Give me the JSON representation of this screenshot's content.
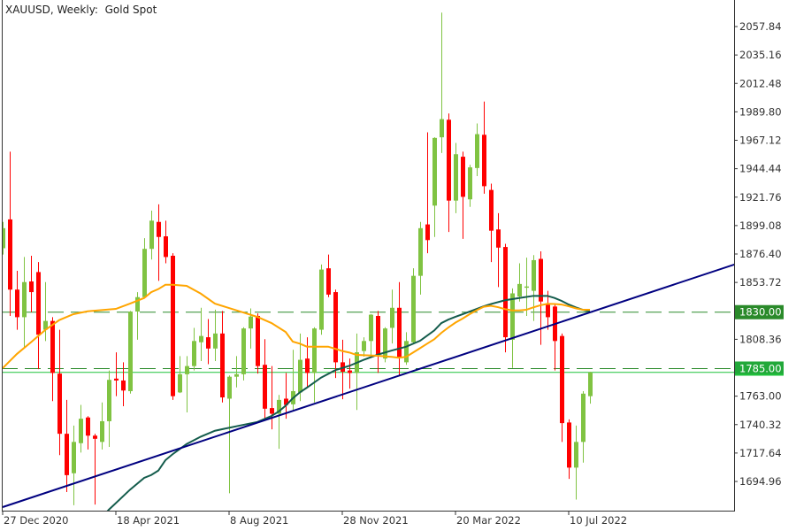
{
  "header": {
    "title": "XAUUSD, Weekly:  Gold Spot"
  },
  "colors": {
    "bull": "#80c342",
    "bear": "#ff0000",
    "ma_fast": "#ffa500",
    "ma_slow": "#145c4c",
    "trendline": "#000080",
    "level": "#2a8a2a",
    "price_line": "#1fc23a",
    "axis": "#333333"
  },
  "chart_data": {
    "type": "candlestick",
    "title": "XAUUSD, Weekly:  Gold Spot",
    "ylim": [
      1680,
      2075
    ],
    "y_ticks": [
      "2057.84",
      "2035.16",
      "2012.48",
      "1989.80",
      "1967.12",
      "1944.44",
      "1921.76",
      "1899.08",
      "1876.40",
      "1853.72",
      "1808.36",
      "1763.00",
      "1740.32",
      "1717.64",
      "1694.96"
    ],
    "x_ticks": [
      {
        "index": 0,
        "label": "27 Dec 2020"
      },
      {
        "index": 16,
        "label": "18 Apr 2021"
      },
      {
        "index": 32,
        "label": "8 Aug 2021"
      },
      {
        "index": 48,
        "label": "28 Nov 2021"
      },
      {
        "index": 64,
        "label": "20 Mar 2022"
      },
      {
        "index": 80,
        "label": "10 Jul 2022"
      }
    ],
    "candles_ohlc": [
      [
        1881,
        1902,
        1876,
        1897
      ],
      [
        1904,
        1958,
        1827,
        1848
      ],
      [
        1848,
        1863,
        1816,
        1826
      ],
      [
        1826,
        1874,
        1801,
        1854
      ],
      [
        1854.5,
        1875,
        1830,
        1846
      ],
      [
        1862,
        1870,
        1784.5,
        1812
      ],
      [
        1816,
        1854,
        1807,
        1823
      ],
      [
        1823,
        1826,
        1759,
        1781.5
      ],
      [
        1781,
        1816,
        1716,
        1733
      ],
      [
        1733,
        1760,
        1686.5,
        1700
      ],
      [
        1701.5,
        1739.5,
        1676,
        1726.5
      ],
      [
        1725.5,
        1756,
        1718,
        1745
      ],
      [
        1746,
        1747,
        1720.5,
        1731.5
      ],
      [
        1731.5,
        1733,
        1676.5,
        1729
      ],
      [
        1726.5,
        1758,
        1720.5,
        1743
      ],
      [
        1743,
        1783.5,
        1722.5,
        1776
      ],
      [
        1777,
        1798,
        1763,
        1775.5
      ],
      [
        1775.5,
        1790,
        1755,
        1767.5
      ],
      [
        1767,
        1831,
        1765,
        1830.5
      ],
      [
        1830.5,
        1846,
        1808,
        1842
      ],
      [
        1842,
        1889,
        1841,
        1880.5
      ],
      [
        1880.5,
        1911,
        1872,
        1903
      ],
      [
        1902,
        1916,
        1855,
        1890
      ],
      [
        1890.5,
        1903,
        1869,
        1874
      ],
      [
        1875,
        1877,
        1760,
        1763
      ],
      [
        1766,
        1795,
        1765.5,
        1780.5
      ],
      [
        1780.5,
        1795,
        1750,
        1787
      ],
      [
        1787,
        1817.5,
        1783.5,
        1807
      ],
      [
        1806,
        1833.5,
        1791,
        1811
      ],
      [
        1810,
        1824.5,
        1788.5,
        1801
      ],
      [
        1801,
        1832,
        1791,
        1813
      ],
      [
        1813,
        1831,
        1758,
        1762
      ],
      [
        1761,
        1779.5,
        1685.5,
        1778.5
      ],
      [
        1778.5,
        1795,
        1770,
        1780.5
      ],
      [
        1780.5,
        1818,
        1775.5,
        1817
      ],
      [
        1817,
        1833,
        1801,
        1826.5
      ],
      [
        1827,
        1829,
        1781,
        1787
      ],
      [
        1788,
        1808.5,
        1744,
        1753
      ],
      [
        1753.5,
        1787,
        1736.5,
        1749
      ],
      [
        1749,
        1764,
        1721,
        1760
      ],
      [
        1761,
        1781.5,
        1745,
        1756
      ],
      [
        1756.5,
        1800,
        1752,
        1767
      ],
      [
        1766,
        1813,
        1759,
        1792
      ],
      [
        1793,
        1810,
        1770,
        1781.5
      ],
      [
        1781.5,
        1818,
        1758,
        1817
      ],
      [
        1816,
        1868,
        1812,
        1864
      ],
      [
        1865,
        1876,
        1842,
        1844
      ],
      [
        1846,
        1848,
        1777.5,
        1790
      ],
      [
        1790,
        1808,
        1760.5,
        1782.5
      ],
      [
        1783.5,
        1793,
        1769,
        1781.5
      ],
      [
        1781.5,
        1813,
        1752,
        1798
      ],
      [
        1799,
        1810,
        1794.5,
        1807
      ],
      [
        1807,
        1828.5,
        1794.5,
        1828
      ],
      [
        1827,
        1831,
        1781.5,
        1796
      ],
      [
        1793,
        1818,
        1790,
        1817
      ],
      [
        1817.5,
        1848,
        1805,
        1833.5
      ],
      [
        1833.5,
        1854,
        1779.5,
        1794
      ],
      [
        1790,
        1814,
        1788,
        1807
      ],
      [
        1806,
        1865,
        1805,
        1859
      ],
      [
        1859,
        1902,
        1844,
        1897
      ],
      [
        1900,
        1973.5,
        1877,
        1887.5
      ],
      [
        1915,
        1969.5,
        1890,
        1969
      ],
      [
        1969.5,
        2069,
        1957,
        1984
      ],
      [
        1983.5,
        1988.5,
        1894,
        1919
      ],
      [
        1919,
        1965,
        1909,
        1956
      ],
      [
        1954,
        1958,
        1888.5,
        1922
      ],
      [
        1920,
        1947.5,
        1914,
        1945.5
      ],
      [
        1945,
        1980.5,
        1938.5,
        1972
      ],
      [
        1971.5,
        1998,
        1924.5,
        1930.5
      ],
      [
        1927.5,
        1932.5,
        1870,
        1895
      ],
      [
        1896,
        1909,
        1850,
        1881.5
      ],
      [
        1882,
        1884.5,
        1798,
        1810
      ],
      [
        1808,
        1849,
        1785.5,
        1845
      ],
      [
        1842.5,
        1869,
        1838.5,
        1852.5
      ],
      [
        1849.5,
        1873.5,
        1827,
        1850.5
      ],
      [
        1847,
        1875.5,
        1823,
        1871.5
      ],
      [
        1872.5,
        1878.5,
        1804,
        1838.5
      ],
      [
        1836,
        1847,
        1816,
        1826
      ],
      [
        1834.5,
        1836,
        1783.5,
        1807
      ],
      [
        1811,
        1813,
        1726.5,
        1741.5
      ],
      [
        1742,
        1744.5,
        1697,
        1706
      ],
      [
        1706,
        1739.5,
        1680.5,
        1726.5
      ],
      [
        1726.5,
        1767,
        1710,
        1765
      ],
      [
        1763,
        1782.5,
        1757,
        1782
      ]
    ],
    "ma_fast": [
      [
        0,
        1785.3
      ],
      [
        2,
        1796.6
      ],
      [
        4,
        1806
      ],
      [
        6,
        1815.7
      ],
      [
        8,
        1823.7
      ],
      [
        10,
        1828.4
      ],
      [
        12,
        1830.7
      ],
      [
        16,
        1832.6
      ],
      [
        18,
        1836.8
      ],
      [
        20,
        1841.3
      ],
      [
        21,
        1846
      ],
      [
        22,
        1848.4
      ],
      [
        23,
        1851.9
      ],
      [
        24,
        1851.9
      ],
      [
        26,
        1851
      ],
      [
        28,
        1844.8
      ],
      [
        30,
        1836.8
      ],
      [
        32,
        1833.3
      ],
      [
        34,
        1829.8
      ],
      [
        36,
        1826.2
      ],
      [
        38,
        1821.3
      ],
      [
        40,
        1814.2
      ],
      [
        41,
        1806.5
      ],
      [
        42,
        1804.9
      ],
      [
        43,
        1802.5
      ],
      [
        46,
        1802.5
      ],
      [
        47,
        1800.8
      ],
      [
        48,
        1799
      ],
      [
        49,
        1797.8
      ],
      [
        50,
        1795.9
      ],
      [
        53,
        1795.2
      ],
      [
        55,
        1794.3
      ],
      [
        56,
        1793.6
      ],
      [
        57,
        1794.3
      ],
      [
        58,
        1797.8
      ],
      [
        59,
        1801.3
      ],
      [
        60,
        1804.9
      ],
      [
        61,
        1808.4
      ],
      [
        62,
        1813.5
      ],
      [
        63,
        1817.8
      ],
      [
        64,
        1821.7
      ],
      [
        65,
        1824.9
      ],
      [
        66,
        1828.4
      ],
      [
        67,
        1831.6
      ],
      [
        68,
        1834.3
      ],
      [
        69,
        1835.1
      ],
      [
        70,
        1834
      ],
      [
        71,
        1832.4
      ],
      [
        72,
        1831.4
      ],
      [
        73,
        1831.4
      ],
      [
        74,
        1831.9
      ],
      [
        75,
        1833.8
      ],
      [
        76,
        1835.5
      ],
      [
        77,
        1836.7
      ],
      [
        78,
        1836.5
      ],
      [
        79,
        1836.1
      ],
      [
        80,
        1834.7
      ],
      [
        81,
        1833.1
      ],
      [
        82,
        1831.9
      ],
      [
        83,
        1831.9
      ]
    ],
    "ma_slow": [
      [
        14,
        1666
      ],
      [
        15,
        1672.4
      ],
      [
        18,
        1688.4
      ],
      [
        20,
        1697.8
      ],
      [
        21,
        1700.1
      ],
      [
        22,
        1703.6
      ],
      [
        23,
        1711.9
      ],
      [
        24,
        1716.6
      ],
      [
        26,
        1724.8
      ],
      [
        28,
        1730.7
      ],
      [
        30,
        1735.4
      ],
      [
        32,
        1737.8
      ],
      [
        34,
        1740.1
      ],
      [
        36,
        1742.4
      ],
      [
        38,
        1747.2
      ],
      [
        39,
        1750.7
      ],
      [
        40,
        1755.4
      ],
      [
        41,
        1761.3
      ],
      [
        42,
        1766
      ],
      [
        43,
        1769.8
      ],
      [
        45,
        1777.8
      ],
      [
        47,
        1783.7
      ],
      [
        49,
        1787.2
      ],
      [
        51,
        1791.9
      ],
      [
        53,
        1796.1
      ],
      [
        55,
        1799.4
      ],
      [
        57,
        1802.4
      ],
      [
        59,
        1807.2
      ],
      [
        61,
        1815.4
      ],
      [
        62,
        1821.3
      ],
      [
        63,
        1824.1
      ],
      [
        64,
        1826.3
      ],
      [
        65,
        1828.4
      ],
      [
        66,
        1830.5
      ],
      [
        67,
        1832.6
      ],
      [
        68,
        1834.7
      ],
      [
        69,
        1836.5
      ],
      [
        71,
        1839.5
      ],
      [
        73,
        1841.3
      ],
      [
        75,
        1843
      ],
      [
        77,
        1843
      ],
      [
        78,
        1841.3
      ],
      [
        79,
        1839
      ],
      [
        80,
        1836.1
      ],
      [
        81,
        1833.8
      ],
      [
        82,
        1831.9
      ],
      [
        83,
        1830.7
      ]
    ],
    "trendline": [
      [
        0,
        1674.5
      ],
      [
        103.4,
        1868
      ]
    ],
    "levels": [
      {
        "price": 1830,
        "label": "1830.00"
      },
      {
        "price": 1785,
        "label": "1785.00"
      }
    ],
    "price_line": 1782
  }
}
